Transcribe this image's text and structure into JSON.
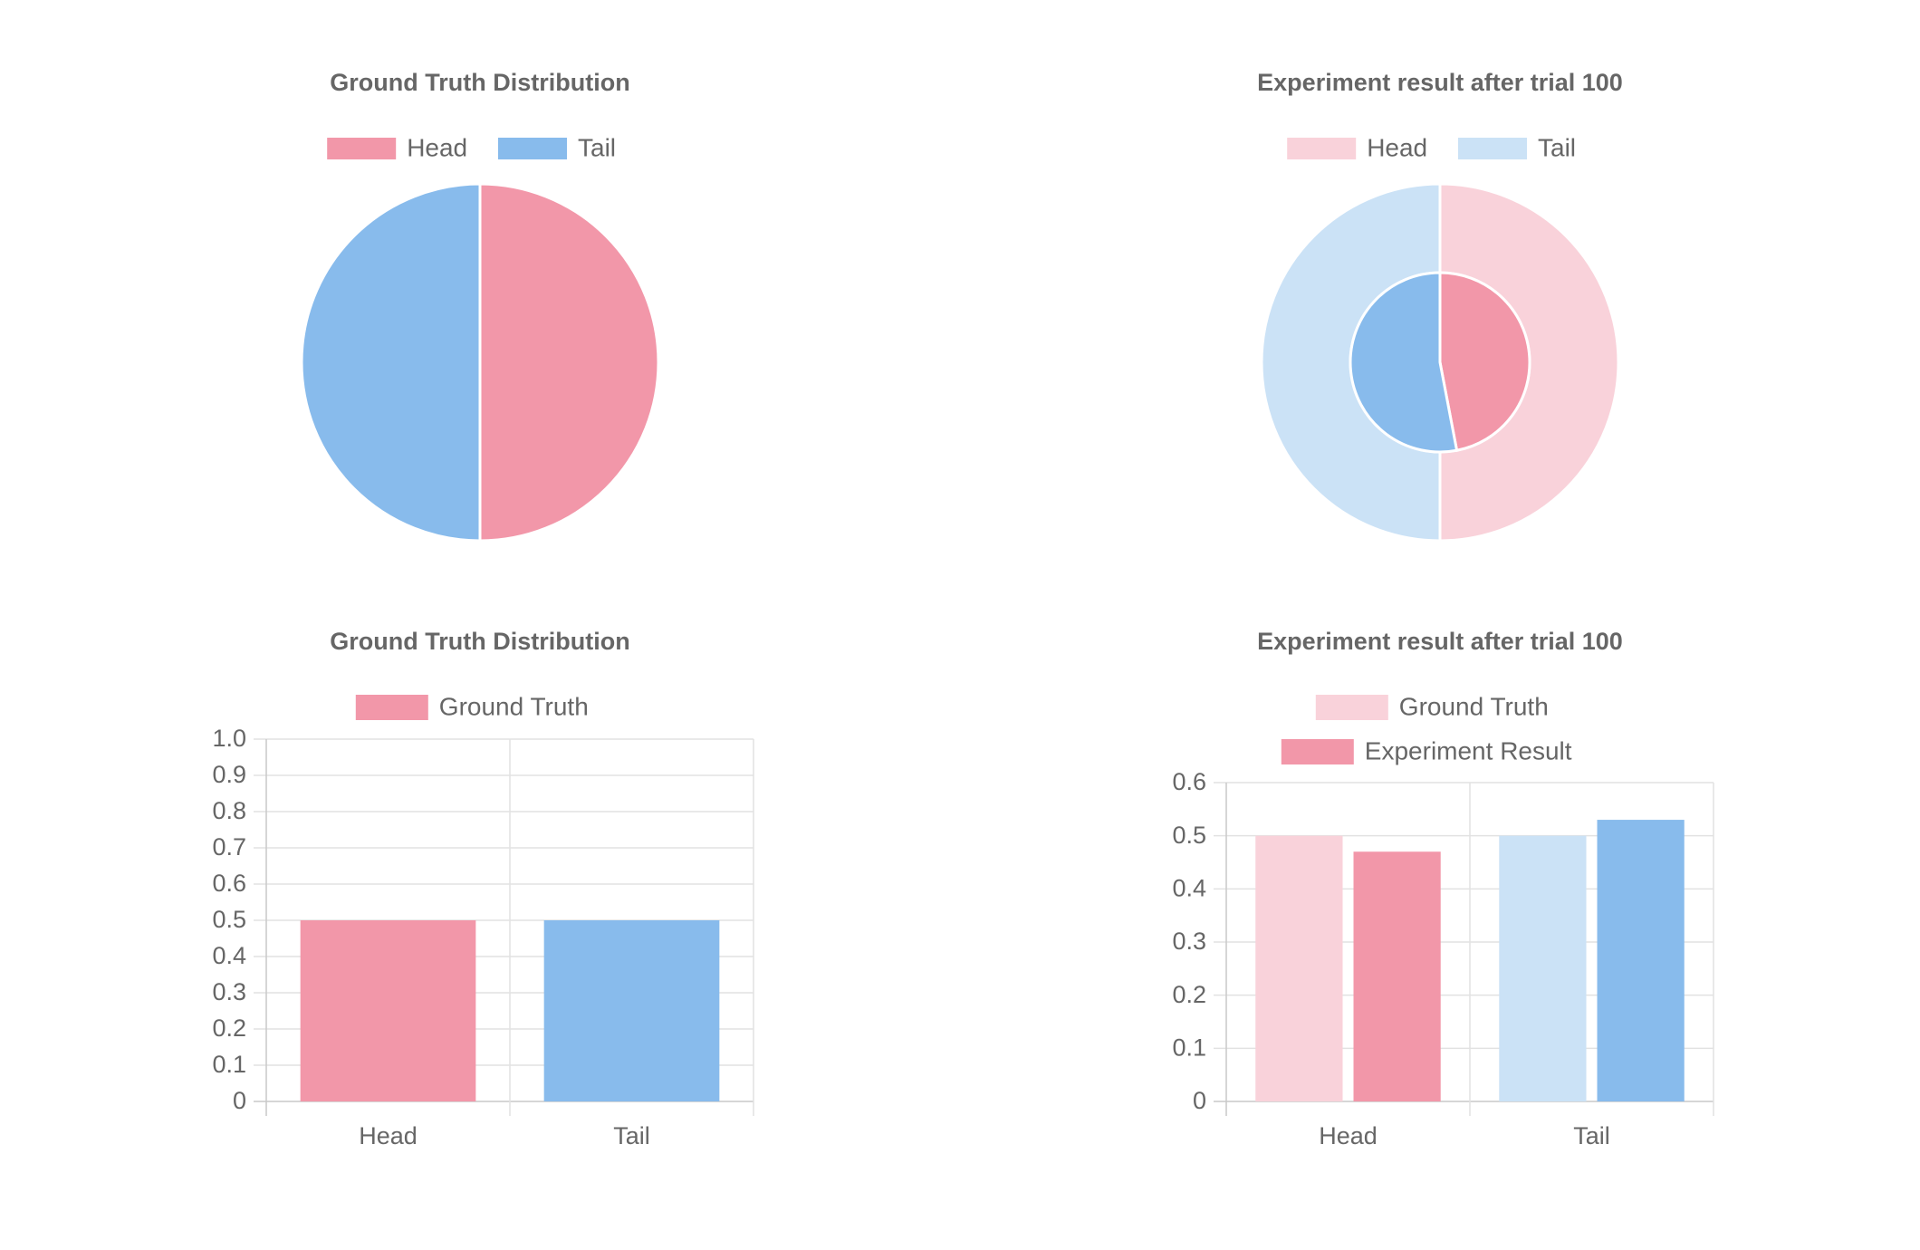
{
  "colors": {
    "head": "#f297a9",
    "tail": "#88bbec",
    "head_light": "#f9d2da",
    "tail_light": "#cbe2f6"
  },
  "chart_data": [
    {
      "id": "pie-gt",
      "type": "pie",
      "title": "Ground Truth Distribution",
      "legend": [
        "Head",
        "Tail"
      ],
      "legend_position": "top",
      "rings": [
        {
          "name": "",
          "values": [
            0.5,
            0.5
          ],
          "colors": [
            "#f297a9",
            "#88bbec"
          ]
        }
      ]
    },
    {
      "id": "pie-exp",
      "type": "pie",
      "title": "Experiment result after trial 100",
      "legend": [
        "Head",
        "Tail"
      ],
      "legend_position": "top",
      "rings": [
        {
          "name": "",
          "values": [
            0.5,
            0.5
          ],
          "colors": [
            "#f9d2da",
            "#cbe2f6"
          ]
        },
        {
          "name": "",
          "values": [
            0.47,
            0.53
          ],
          "colors": [
            "#f297a9",
            "#88bbec"
          ]
        }
      ]
    },
    {
      "id": "bar-gt",
      "type": "bar",
      "title": "Ground Truth Distribution",
      "categories": [
        "Head",
        "Tail"
      ],
      "series": [
        {
          "name": "Ground Truth",
          "values": [
            0.5,
            0.5
          ],
          "colors": [
            "#f297a9",
            "#88bbec"
          ],
          "legend_color": "#f297a9"
        }
      ],
      "ylim": [
        0,
        1.0
      ],
      "yticks": [
        "0",
        "0.1",
        "0.2",
        "0.3",
        "0.4",
        "0.5",
        "0.6",
        "0.7",
        "0.8",
        "0.9",
        "1.0"
      ],
      "grid": true,
      "legend_position": "top"
    },
    {
      "id": "bar-exp",
      "type": "bar",
      "title": "Experiment result after trial 100",
      "categories": [
        "Head",
        "Tail"
      ],
      "series": [
        {
          "name": "Ground Truth",
          "values": [
            0.5,
            0.5
          ],
          "colors": [
            "#f9d2da",
            "#cbe2f6"
          ],
          "legend_color": "#f9d2da"
        },
        {
          "name": "Experiment Result",
          "values": [
            0.47,
            0.53
          ],
          "colors": [
            "#f297a9",
            "#88bbec"
          ],
          "legend_color": "#f297a9"
        }
      ],
      "ylim": [
        0,
        0.6
      ],
      "yticks": [
        "0",
        "0.1",
        "0.2",
        "0.3",
        "0.4",
        "0.5",
        "0.6"
      ],
      "grid": true,
      "legend_position": "top"
    }
  ]
}
